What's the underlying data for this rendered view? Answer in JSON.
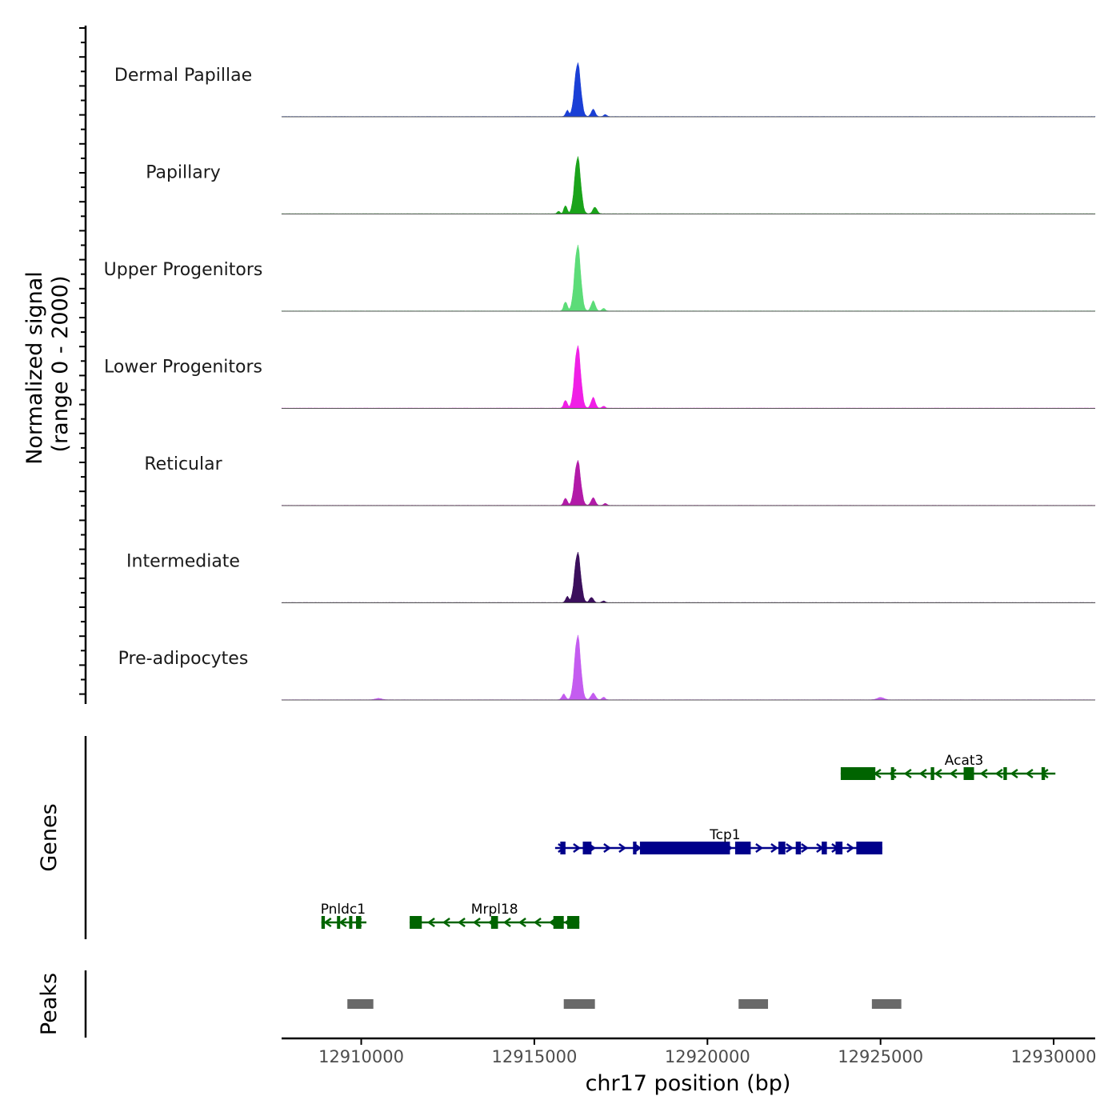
{
  "chart_data": {
    "type": "area",
    "title": "",
    "chromosome": "chr17",
    "xlabel": "chr17 position (bp)",
    "xlim": [
      12907700,
      12931200
    ],
    "x_ticks": [
      12910000,
      12915000,
      12920000,
      12925000,
      12930000
    ],
    "x_tick_labels": [
      "12910000",
      "12915000",
      "12920000",
      "12925000",
      "12930000"
    ],
    "coverage": {
      "ylabel_line1": "Normalized signal",
      "ylabel_line2": "(range 0 - 2000)",
      "ylim": [
        0,
        2000
      ],
      "series": [
        {
          "name": "Dermal Papillae",
          "color": "#1a3fd6",
          "peaks": [
            {
              "center": 12916250,
              "width": 230,
              "height": 1600
            },
            {
              "center": 12915950,
              "width": 120,
              "height": 180
            },
            {
              "center": 12916700,
              "width": 150,
              "height": 220
            },
            {
              "center": 12917050,
              "width": 120,
              "height": 60
            }
          ]
        },
        {
          "name": "Papillary",
          "color": "#1aa31a",
          "peaks": [
            {
              "center": 12916250,
              "width": 230,
              "height": 1700
            },
            {
              "center": 12915900,
              "width": 120,
              "height": 250
            },
            {
              "center": 12916750,
              "width": 160,
              "height": 200
            },
            {
              "center": 12915700,
              "width": 100,
              "height": 80
            }
          ]
        },
        {
          "name": "Upper Progenitors",
          "color": "#5cdc78",
          "peaks": [
            {
              "center": 12916250,
              "width": 230,
              "height": 1960
            },
            {
              "center": 12915900,
              "width": 130,
              "height": 280
            },
            {
              "center": 12916700,
              "width": 160,
              "height": 300
            },
            {
              "center": 12917000,
              "width": 120,
              "height": 80
            }
          ]
        },
        {
          "name": "Lower Progenitors",
          "color": "#f01fe6",
          "peaks": [
            {
              "center": 12916250,
              "width": 230,
              "height": 1860
            },
            {
              "center": 12915900,
              "width": 130,
              "height": 240
            },
            {
              "center": 12916700,
              "width": 160,
              "height": 320
            },
            {
              "center": 12917000,
              "width": 120,
              "height": 60
            }
          ]
        },
        {
          "name": "Reticular",
          "color": "#b21aa8",
          "peaks": [
            {
              "center": 12916250,
              "width": 230,
              "height": 1340
            },
            {
              "center": 12915900,
              "width": 130,
              "height": 220
            },
            {
              "center": 12916700,
              "width": 160,
              "height": 230
            },
            {
              "center": 12917050,
              "width": 120,
              "height": 60
            }
          ]
        },
        {
          "name": "Intermediate",
          "color": "#3b0f5c",
          "peaks": [
            {
              "center": 12916250,
              "width": 230,
              "height": 1500
            },
            {
              "center": 12915950,
              "width": 120,
              "height": 180
            },
            {
              "center": 12916650,
              "width": 150,
              "height": 160
            },
            {
              "center": 12917000,
              "width": 120,
              "height": 50
            }
          ]
        },
        {
          "name": "Pre-adipocytes",
          "color": "#c45cf0",
          "peaks": [
            {
              "center": 12916250,
              "width": 230,
              "height": 1920
            },
            {
              "center": 12915850,
              "width": 140,
              "height": 170
            },
            {
              "center": 12916700,
              "width": 170,
              "height": 200
            },
            {
              "center": 12917000,
              "width": 120,
              "height": 80
            },
            {
              "center": 12925000,
              "width": 250,
              "height": 70
            },
            {
              "center": 12910500,
              "width": 250,
              "height": 40
            }
          ]
        }
      ]
    },
    "genes": {
      "ylabel": "Genes",
      "items": [
        {
          "name": "Acat3",
          "strand": "-",
          "color": "#006400",
          "row": 1,
          "start": 12923850,
          "end": 12930050,
          "exons": [
            [
              12923850,
              12924850
            ],
            [
              12925300,
              12925380
            ],
            [
              12926450,
              12926550
            ],
            [
              12927400,
              12927700
            ],
            [
              12928550,
              12928650
            ],
            [
              12929650,
              12929750
            ]
          ]
        },
        {
          "name": "Tcp1",
          "strand": "+",
          "color": "#00008b",
          "row": 2,
          "start": 12915600,
          "end": 12925050,
          "exons": [
            [
              12915750,
              12915900
            ],
            [
              12916400,
              12916650
            ],
            [
              12917850,
              12917950
            ],
            [
              12918050,
              12920650
            ],
            [
              12920800,
              12921250
            ],
            [
              12922050,
              12922250
            ],
            [
              12922550,
              12922700
            ],
            [
              12923300,
              12923450
            ],
            [
              12923700,
              12923900
            ],
            [
              12924300,
              12925050
            ]
          ]
        },
        {
          "name": "Mrpl18",
          "strand": "-",
          "color": "#006400",
          "row": 3,
          "start": 12911400,
          "end": 12916300,
          "exons": [
            [
              12911400,
              12911750
            ],
            [
              12913750,
              12913950
            ],
            [
              12915550,
              12915850
            ],
            [
              12915950,
              12916300
            ]
          ]
        },
        {
          "name": "Pnldc1",
          "strand": "-",
          "color": "#006400",
          "row": 3,
          "start": 12908850,
          "end": 12910150,
          "exons": [
            [
              12908850,
              12908950
            ],
            [
              12909300,
              12909350
            ],
            [
              12909650,
              12909700
            ],
            [
              12909850,
              12910000
            ]
          ]
        }
      ]
    },
    "peaks": {
      "ylabel": "Peaks",
      "color": "#696969",
      "regions": [
        [
          12909600,
          12910350
        ],
        [
          12915850,
          12916750
        ],
        [
          12920900,
          12921750
        ],
        [
          12924750,
          12925600
        ]
      ]
    }
  }
}
